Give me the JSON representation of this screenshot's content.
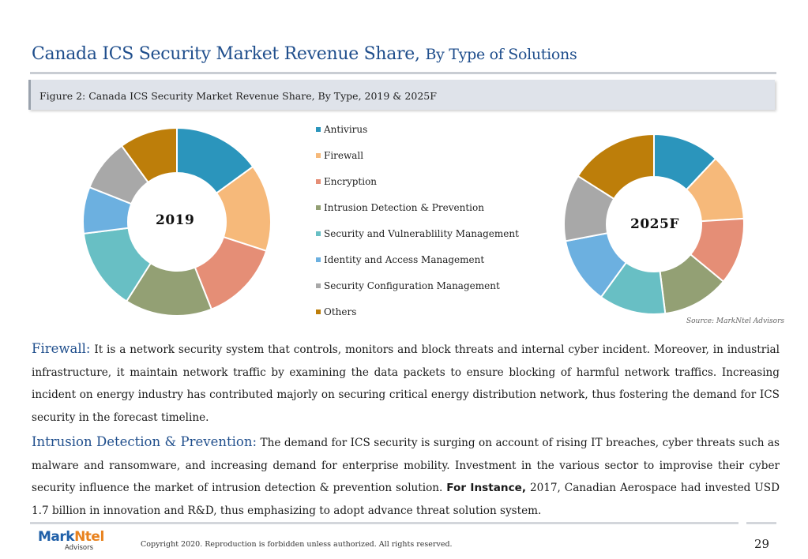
{
  "header": {
    "title_main": "Canada ICS Security Market Revenue Share,",
    "title_sub": "By Type of Solutions"
  },
  "figure": {
    "caption": "Figure 2: Canada ICS Security Market Revenue Share, By Type, 2019 & 2025F",
    "source": "Source: MarkNtel Advisors"
  },
  "chart_data": [
    {
      "type": "pie",
      "title": "2019",
      "categories": [
        "Antivirus",
        "Firewall",
        "Encryption",
        "Intrusion Detection & Prevention",
        "Security and Vulnerablility Management",
        "Identity and Access Management",
        "Security Configuration Management",
        "Others"
      ],
      "values": [
        15,
        15,
        14,
        15,
        14,
        8,
        9,
        10
      ]
    },
    {
      "type": "pie",
      "title": "2025F",
      "categories": [
        "Antivirus",
        "Firewall",
        "Encryption",
        "Intrusion Detection & Prevention",
        "Security and Vulnerablility Management",
        "Identity and Access Management",
        "Security Configuration Management",
        "Others"
      ],
      "values": [
        12,
        12,
        12,
        12,
        12,
        12,
        12,
        16
      ]
    }
  ],
  "legend": [
    {
      "label": "Antivirus",
      "color": "#2b95bc"
    },
    {
      "label": "Firewall",
      "color": "#f6b97a"
    },
    {
      "label": "Encryption",
      "color": "#e58e76"
    },
    {
      "label": "Intrusion Detection & Prevention",
      "color": "#93a074"
    },
    {
      "label": "Security and Vulnerablility Management",
      "color": "#68bfc4"
    },
    {
      "label": "Identity and Access Management",
      "color": "#6cb0e0"
    },
    {
      "label": "Security Configuration Management",
      "color": "#a8a8a8"
    },
    {
      "label": "Others",
      "color": "#bd7e0a"
    }
  ],
  "paragraphs": {
    "firewall_head": "Firewall:",
    "firewall_body": "It is a network security system that controls, monitors and block threats and internal cyber incident. Moreover, in industrial infrastructure, it maintain network traffic by examining the data packets to ensure blocking of harmful network traffics. Increasing incident on energy industry has contributed majorly on securing critical energy distribution network, thus fostering the demand for ICS security in the forecast timeline.",
    "idp_head": "Intrusion Detection & Prevention:",
    "idp_body_1": "The demand for ICS security is surging on account of rising IT breaches, cyber threats such as malware and ransomware, and increasing demand for enterprise mobility. Investment in the various sector to improvise their cyber security influence the market of intrusion detection & prevention solution.",
    "idp_bold": "For Instance,",
    "idp_body_2": "2017, Canadian Aerospace had invested USD 1.7 billion in innovation and R&D, thus emphasizing to adopt advance threat solution system."
  },
  "footer": {
    "logo_part1": "Mark",
    "logo_part2": "Ntel",
    "logo_sub": "Advisors",
    "copyright": "Copyright 2020. Reproduction is forbidden unless authorized. All rights reserved.",
    "page_number": "29"
  }
}
